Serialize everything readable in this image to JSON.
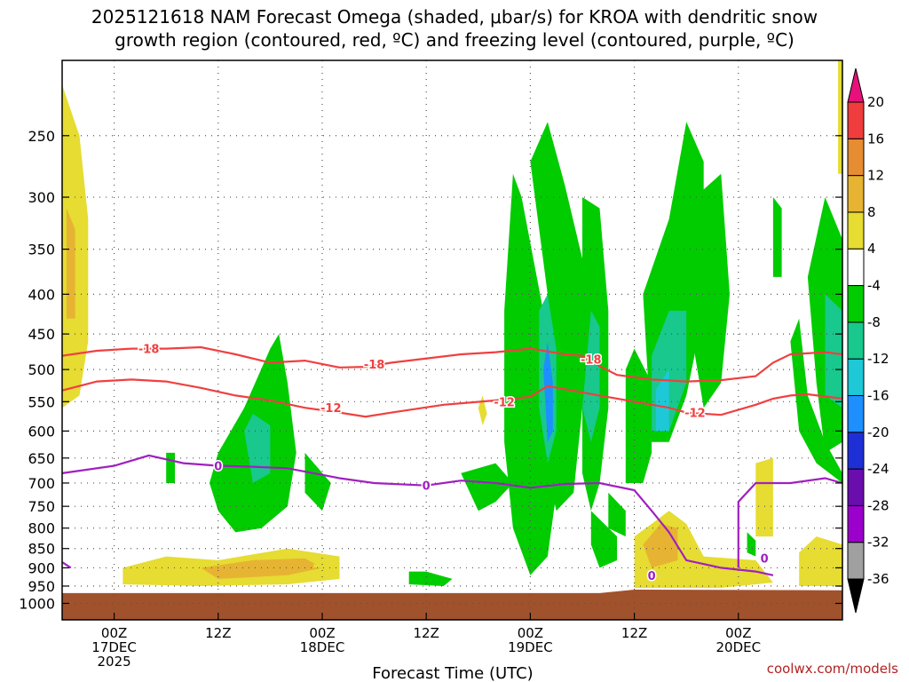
{
  "chart_data": {
    "type": "heatmap",
    "title_line1": "2025121618 NAM Forecast Omega (shaded, μbar/s) for KROA with dendritic snow",
    "title_line2": "growth region (contoured, red, ºC) and freezing level (contoured, purple, ºC)",
    "xlabel": "Forecast Time (UTC)",
    "credit": "coolwx.com/models",
    "y_scale": "log",
    "y_range": [
      1050,
      200
    ],
    "y_ticks": [
      250,
      300,
      350,
      400,
      450,
      500,
      550,
      600,
      650,
      700,
      750,
      800,
      850,
      900,
      950,
      1000
    ],
    "x_range": [
      -6,
      84
    ],
    "x_ticks": [
      {
        "hour": 0,
        "l1": "00Z",
        "l2": "17DEC",
        "l3": "2025"
      },
      {
        "hour": 12,
        "l1": "12Z",
        "l2": "",
        "l3": ""
      },
      {
        "hour": 24,
        "l1": "00Z",
        "l2": "18DEC",
        "l3": ""
      },
      {
        "hour": 36,
        "l1": "12Z",
        "l2": "",
        "l3": ""
      },
      {
        "hour": 48,
        "l1": "00Z",
        "l2": "19DEC",
        "l3": ""
      },
      {
        "hour": 60,
        "l1": "12Z",
        "l2": "",
        "l3": ""
      },
      {
        "hour": 72,
        "l1": "00Z",
        "l2": "20DEC",
        "l3": ""
      }
    ],
    "grid": true,
    "colorbar": {
      "levels": [
        -36,
        -32,
        -28,
        -24,
        -20,
        -16,
        -12,
        -8,
        -4,
        4,
        8,
        12,
        16,
        20
      ],
      "colors": [
        "#000000",
        "#a0a0a0",
        "#9b00cc",
        "#6a0dad",
        "#1f2fd6",
        "#1e8fff",
        "#1ec8d6",
        "#18c88c",
        "#00cc00",
        "#ffffff",
        "#e6dc32",
        "#e6b432",
        "#e68c32",
        "#f03c3c",
        "#e8107a"
      ]
    },
    "terrain": {
      "pressure": 970,
      "color": "#a0522d"
    },
    "contours": {
      "dgz": [
        {
          "label": "-18",
          "color": "#f04040",
          "points": [
            [
              -6,
              480
            ],
            [
              -2,
              473
            ],
            [
              2,
              470
            ],
            [
              6,
              470
            ],
            [
              10,
              468
            ],
            [
              14,
              478
            ],
            [
              18,
              490
            ],
            [
              22,
              487
            ],
            [
              26,
              497
            ],
            [
              29,
              496
            ],
            [
              32,
              490
            ],
            [
              40,
              478
            ],
            [
              44,
              475
            ],
            [
              48,
              470
            ],
            [
              52,
              478
            ],
            [
              54,
              480
            ],
            [
              56,
              495
            ],
            [
              58,
              508
            ],
            [
              62,
              515
            ],
            [
              66,
              518
            ],
            [
              70,
              516
            ],
            [
              74,
              510
            ],
            [
              76,
              490
            ],
            [
              78,
              478
            ],
            [
              82,
              475
            ],
            [
              84,
              478
            ]
          ],
          "labels": [
            [
              4,
              470
            ],
            [
              30,
              492
            ],
            [
              55,
              485
            ]
          ]
        },
        {
          "label": "-12",
          "color": "#f04040",
          "points": [
            [
              -6,
              532
            ],
            [
              -2,
              518
            ],
            [
              2,
              515
            ],
            [
              6,
              518
            ],
            [
              10,
              528
            ],
            [
              14,
              540
            ],
            [
              18,
              548
            ],
            [
              22,
              560
            ],
            [
              26,
              568
            ],
            [
              29,
              575
            ],
            [
              32,
              568
            ],
            [
              38,
              555
            ],
            [
              44,
              548
            ],
            [
              48,
              542
            ],
            [
              50,
              525
            ],
            [
              52,
              530
            ],
            [
              56,
              540
            ],
            [
              60,
              550
            ],
            [
              64,
              560
            ],
            [
              66,
              568
            ],
            [
              70,
              572
            ],
            [
              74,
              555
            ],
            [
              76,
              545
            ],
            [
              78,
              540
            ],
            [
              80,
              538
            ],
            [
              84,
              545
            ]
          ],
          "labels": [
            [
              25,
              560
            ],
            [
              45,
              550
            ],
            [
              67,
              568
            ]
          ]
        }
      ],
      "freezing": [
        {
          "label": "0",
          "color": "#a020c0",
          "points": [
            [
              -6,
              680
            ],
            [
              0,
              665
            ],
            [
              4,
              645
            ],
            [
              8,
              660
            ],
            [
              12,
              665
            ],
            [
              16,
              667
            ],
            [
              20,
              670
            ],
            [
              26,
              690
            ],
            [
              30,
              700
            ],
            [
              36,
              705
            ],
            [
              40,
              695
            ],
            [
              44,
              700
            ],
            [
              48,
              710
            ],
            [
              52,
              702
            ],
            [
              56,
              700
            ],
            [
              60,
              715
            ],
            [
              62,
              760
            ],
            [
              64,
              810
            ],
            [
              66,
              880
            ],
            [
              70,
              900
            ],
            [
              74,
              910
            ],
            [
              76,
              920
            ]
          ],
          "labels": [
            [
              12,
              665
            ],
            [
              36,
              705
            ],
            [
              62,
              920
            ]
          ]
        },
        {
          "label": "0",
          "color": "#a020c0",
          "points": [
            [
              72,
              900
            ],
            [
              72,
              820
            ],
            [
              72,
              740
            ],
            [
              74,
              700
            ],
            [
              78,
              700
            ],
            [
              82,
              690
            ],
            [
              84,
              700
            ]
          ],
          "labels": [
            [
              75,
              875
            ]
          ]
        },
        {
          "label": "0",
          "color": "#a020c0",
          "points": [
            [
              -6,
              885
            ],
            [
              -5,
              900
            ]
          ],
          "labels": []
        }
      ]
    }
  }
}
